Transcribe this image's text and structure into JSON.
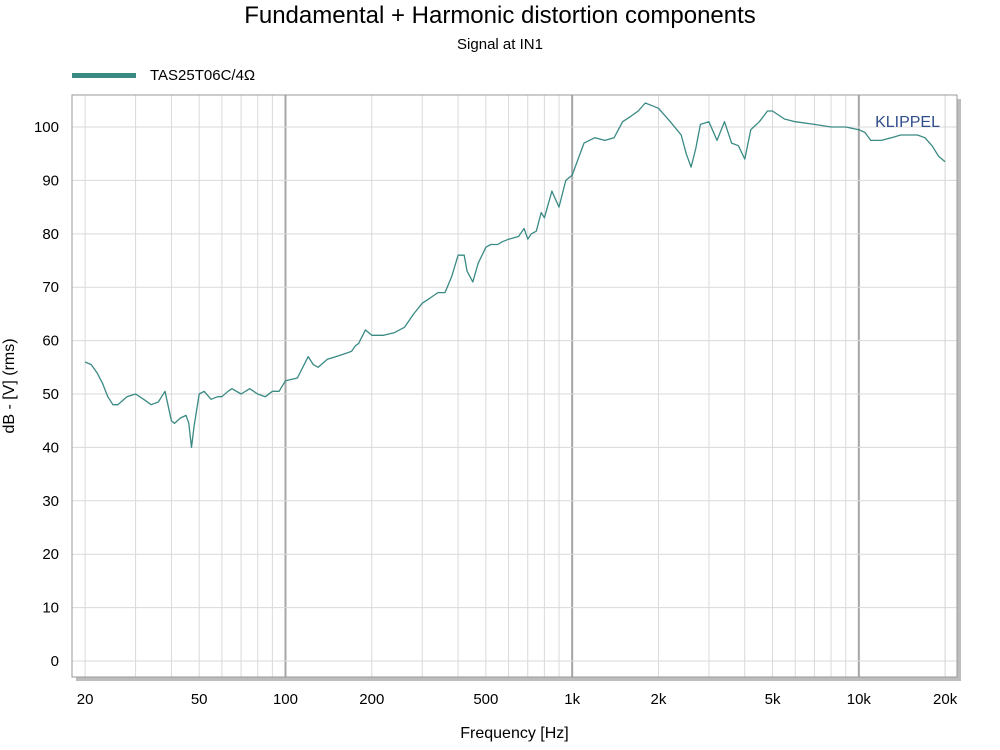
{
  "title": "Fundamental + Harmonic distortion components",
  "subtitle": "Signal at IN1",
  "watermark": "KLIPPEL",
  "colors": {
    "series": "#3a8a84",
    "watermark": "#2f4d8a",
    "grid_minor": "#d9d9d9",
    "grid_major": "#a6a6a6"
  },
  "chart_data": {
    "type": "line",
    "title": "Fundamental + Harmonic distortion components",
    "subtitle": "Signal at IN1",
    "xlabel": "Frequency [Hz]",
    "ylabel": "dB - [V]  (rms)",
    "xscale": "log",
    "xlim": [
      18,
      22000
    ],
    "ylim": [
      -3,
      106
    ],
    "grid": true,
    "legend_position": "top-left",
    "x_ticks": [
      20,
      50,
      100,
      200,
      500,
      1000,
      2000,
      5000,
      10000,
      20000
    ],
    "x_tick_labels": [
      "20",
      "50",
      "100",
      "200",
      "500",
      "1k",
      "2k",
      "5k",
      "10k",
      "20k"
    ],
    "y_ticks": [
      0,
      10,
      20,
      30,
      40,
      50,
      60,
      70,
      80,
      90,
      100
    ],
    "y_tick_labels": [
      "0",
      "10",
      "20",
      "30",
      "40",
      "50",
      "60",
      "70",
      "80",
      "90",
      "100"
    ],
    "series": [
      {
        "name": "TAS25T06C/4Ω",
        "x": [
          20,
          21,
          22,
          23,
          24,
          25,
          26,
          28,
          30,
          32,
          34,
          36,
          38,
          40,
          41,
          43,
          45,
          46,
          47,
          48,
          50,
          52,
          55,
          58,
          60,
          63,
          65,
          70,
          75,
          80,
          85,
          90,
          95,
          100,
          110,
          120,
          125,
          130,
          140,
          150,
          160,
          170,
          175,
          180,
          190,
          200,
          220,
          240,
          260,
          280,
          300,
          320,
          340,
          360,
          380,
          390,
          400,
          420,
          430,
          450,
          470,
          500,
          520,
          550,
          570,
          600,
          650,
          680,
          700,
          720,
          750,
          780,
          800,
          850,
          900,
          950,
          1000,
          1100,
          1200,
          1300,
          1400,
          1500,
          1600,
          1700,
          1800,
          1900,
          2000,
          2200,
          2400,
          2500,
          2600,
          2700,
          2800,
          3000,
          3200,
          3400,
          3600,
          3800,
          4000,
          4200,
          4500,
          4800,
          5000,
          5500,
          6000,
          7000,
          8000,
          9000,
          10000,
          10500,
          11000,
          12000,
          13000,
          14000,
          15000,
          16000,
          17000,
          18000,
          19000,
          20000
        ],
        "values": [
          56,
          55.5,
          54,
          52,
          49.5,
          48,
          48,
          49.5,
          50,
          49,
          48,
          48.5,
          50.5,
          45,
          44.5,
          45.5,
          46,
          44.5,
          40,
          44,
          50,
          50.5,
          49,
          49.5,
          49.5,
          50.5,
          51,
          50,
          51,
          50,
          49.5,
          50.5,
          50.5,
          52.5,
          53,
          57,
          55.5,
          55,
          56.5,
          57,
          57.5,
          58,
          59,
          59.5,
          62,
          61,
          61,
          61.5,
          62.5,
          65,
          67,
          68,
          69,
          69,
          72,
          74,
          76,
          76,
          73,
          71,
          74.5,
          77.5,
          78,
          78,
          78.5,
          79,
          79.5,
          81,
          79,
          80,
          80.5,
          84,
          83,
          88,
          85,
          90,
          91,
          97,
          98,
          97.5,
          98,
          101,
          102,
          103,
          104.5,
          104,
          103.5,
          101,
          98.5,
          95,
          92.5,
          96,
          100.5,
          101,
          97.5,
          101,
          97,
          96.5,
          94,
          99.5,
          101,
          103,
          103,
          101.5,
          101,
          100.5,
          100,
          100,
          99.5,
          99,
          97.5,
          97.5,
          98,
          98.5,
          98.5,
          98.5,
          98,
          96.5,
          94.5,
          93.5
        ]
      }
    ]
  }
}
